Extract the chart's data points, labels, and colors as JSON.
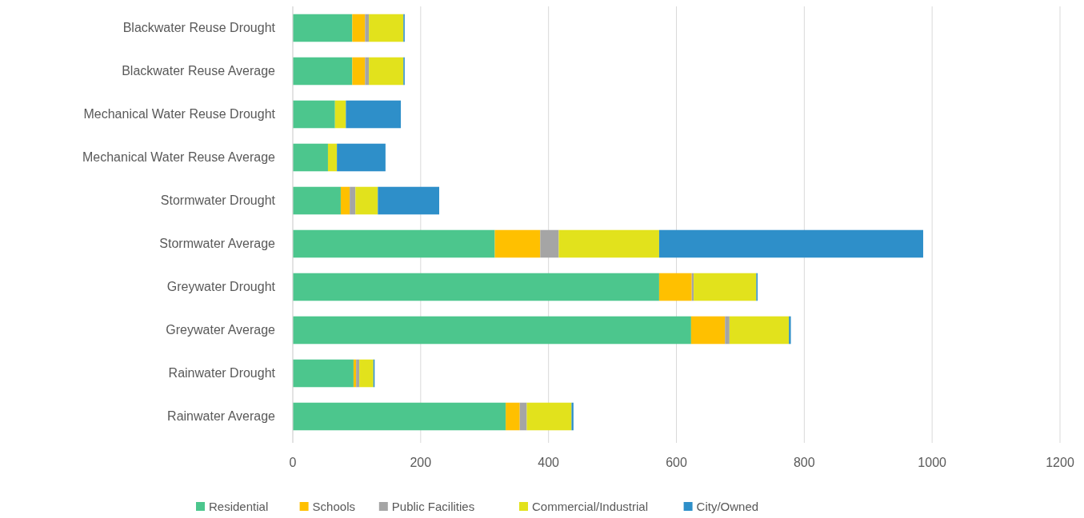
{
  "chart_data": {
    "type": "bar",
    "orientation": "horizontal",
    "stacked": true,
    "categories": [
      "Blackwater Reuse Drought",
      "Blackwater Reuse Average",
      "Mechanical Water Reuse Drought",
      "Mechanical Water Reuse Average",
      "Stormwater Drought",
      "Stormwater Average",
      "Greywater Drought",
      "Greywater Average",
      "Rainwater Drought",
      "Rainwater Average"
    ],
    "series": [
      {
        "name": "Residential",
        "color": "#4cc68d",
        "values": [
          93,
          93,
          66,
          55,
          75,
          316,
          573,
          623,
          95,
          333
        ]
      },
      {
        "name": "Schools",
        "color": "#ffc000",
        "values": [
          20,
          20,
          0,
          0,
          14,
          71,
          51,
          53,
          4,
          22
        ]
      },
      {
        "name": "Public Facilities",
        "color": "#a5a5a5",
        "values": [
          6,
          6,
          0,
          0,
          9,
          29,
          3,
          7,
          5,
          11
        ]
      },
      {
        "name": "Commercial/Industrial",
        "color": "#e2e21c",
        "values": [
          54,
          54,
          17,
          14,
          35,
          157,
          98,
          93,
          22,
          70
        ]
      },
      {
        "name": "City/Owned",
        "color": "#2e8fc9",
        "values": [
          2,
          2,
          86,
          76,
          96,
          413,
          2,
          3,
          2,
          3
        ]
      }
    ],
    "xlim": [
      0,
      1200
    ],
    "xticks": [
      0,
      200,
      400,
      600,
      800,
      1000,
      1200
    ],
    "grid": "x",
    "legend": "bottom"
  }
}
